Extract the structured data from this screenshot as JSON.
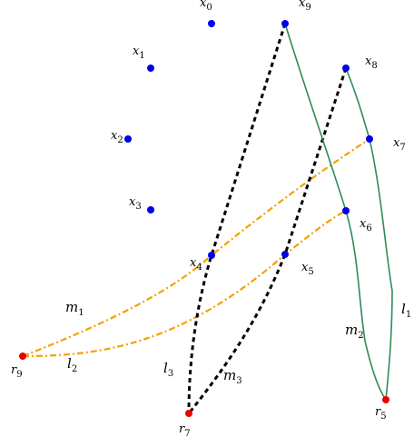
{
  "colors": {
    "point_blue": "#0000ee",
    "point_red": "#ee0000",
    "green": "#2e8b57",
    "orange": "#f5a000",
    "black": "#000000"
  },
  "points": [
    {
      "id": "x0",
      "base": "x",
      "sub": "0",
      "color": "blue"
    },
    {
      "id": "x1",
      "base": "x",
      "sub": "1",
      "color": "blue"
    },
    {
      "id": "x2",
      "base": "x",
      "sub": "2",
      "color": "blue"
    },
    {
      "id": "x3",
      "base": "x",
      "sub": "3",
      "color": "blue"
    },
    {
      "id": "x4",
      "base": "x",
      "sub": "4",
      "color": "blue"
    },
    {
      "id": "x5",
      "base": "x",
      "sub": "5",
      "color": "blue"
    },
    {
      "id": "x6",
      "base": "x",
      "sub": "6",
      "color": "blue"
    },
    {
      "id": "x7",
      "base": "x",
      "sub": "7",
      "color": "blue"
    },
    {
      "id": "x8",
      "base": "x",
      "sub": "8",
      "color": "blue"
    },
    {
      "id": "x9",
      "base": "x",
      "sub": "9",
      "color": "blue"
    },
    {
      "id": "r5",
      "base": "r",
      "sub": "5",
      "color": "red"
    },
    {
      "id": "r7",
      "base": "r",
      "sub": "7",
      "color": "red"
    },
    {
      "id": "r9",
      "base": "r",
      "sub": "9",
      "color": "red"
    }
  ],
  "curves": [
    {
      "id": "m1",
      "base": "m",
      "sub": "1",
      "style": "orange-dashdot"
    },
    {
      "id": "l2",
      "base": "l",
      "sub": "2",
      "style": "orange-dashdot"
    },
    {
      "id": "l3",
      "base": "l",
      "sub": "3",
      "style": "black-dashed"
    },
    {
      "id": "m3",
      "base": "m",
      "sub": "3",
      "style": "black-dashed"
    },
    {
      "id": "m2",
      "base": "m",
      "sub": "2",
      "style": "green-solid"
    },
    {
      "id": "l1",
      "base": "l",
      "sub": "1",
      "style": "green-solid"
    }
  ]
}
